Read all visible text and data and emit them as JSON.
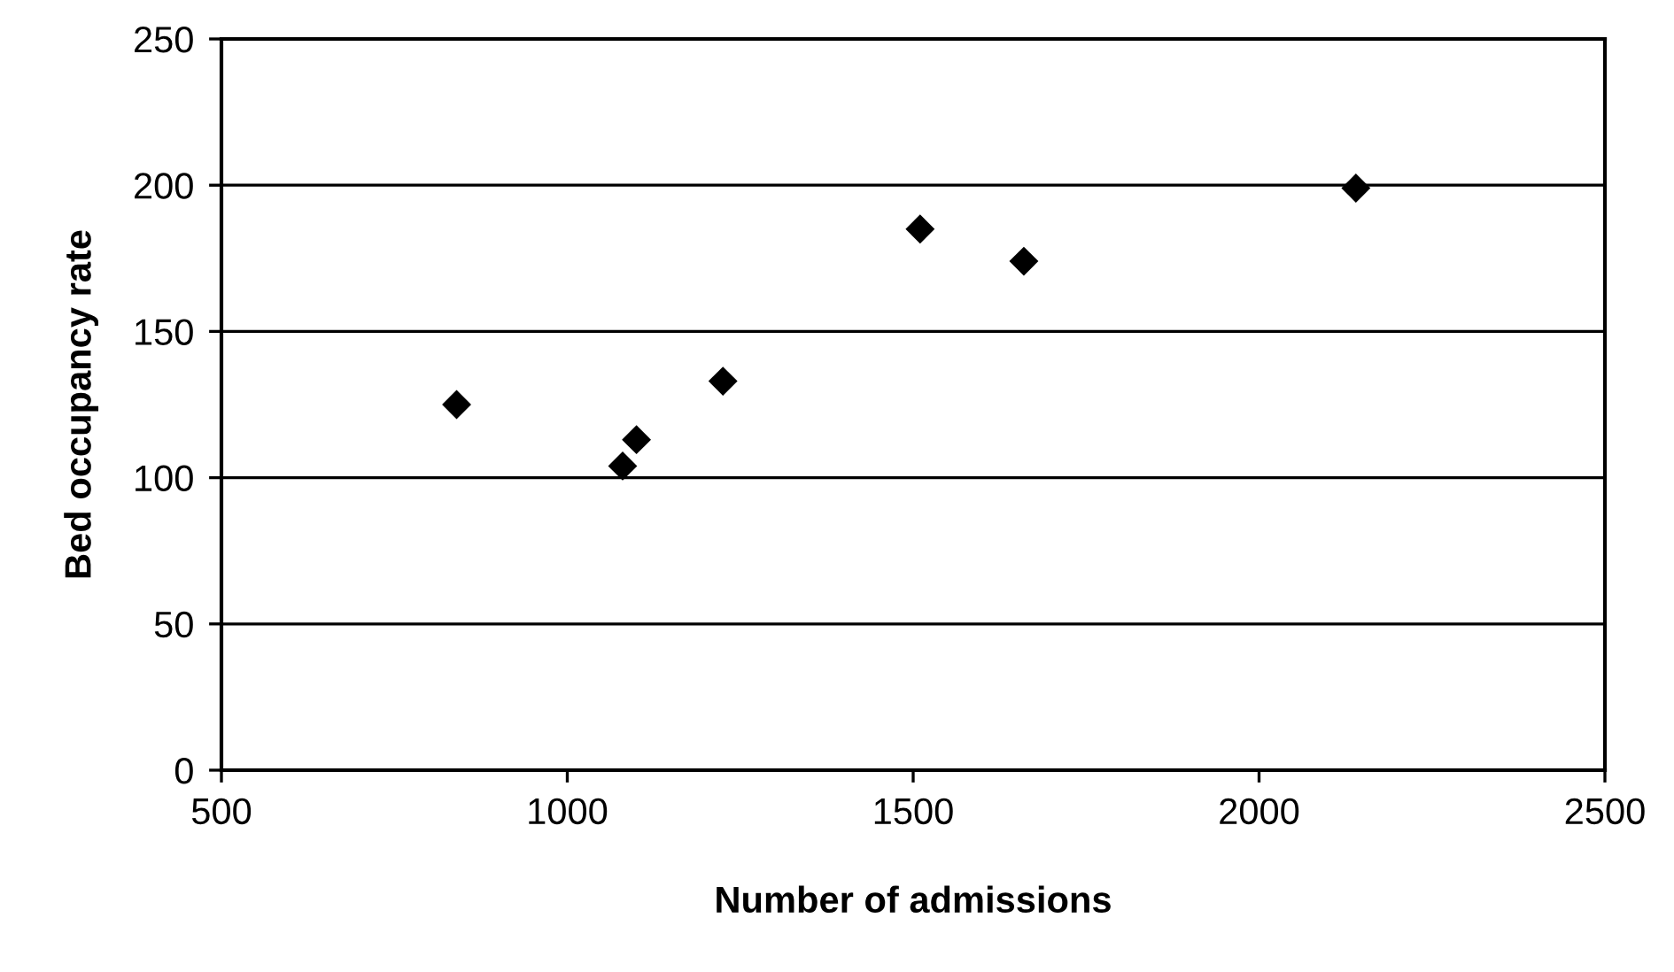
{
  "chart_data": {
    "type": "scatter",
    "xlabel": "Number of admissions",
    "ylabel": "Bed occupancy rate",
    "x": [
      840,
      1080,
      1100,
      1225,
      1510,
      1660,
      2140
    ],
    "values": [
      125,
      104,
      113,
      133,
      185,
      174,
      199
    ],
    "color": "#000000",
    "marker": "diamond",
    "xlim": [
      500,
      2500
    ],
    "xticks": [
      500,
      1000,
      1500,
      2000,
      2500
    ],
    "ylim": [
      0,
      250
    ],
    "yticks": [
      0,
      50,
      100,
      150,
      200,
      250
    ],
    "grid": "y",
    "legend": false
  }
}
